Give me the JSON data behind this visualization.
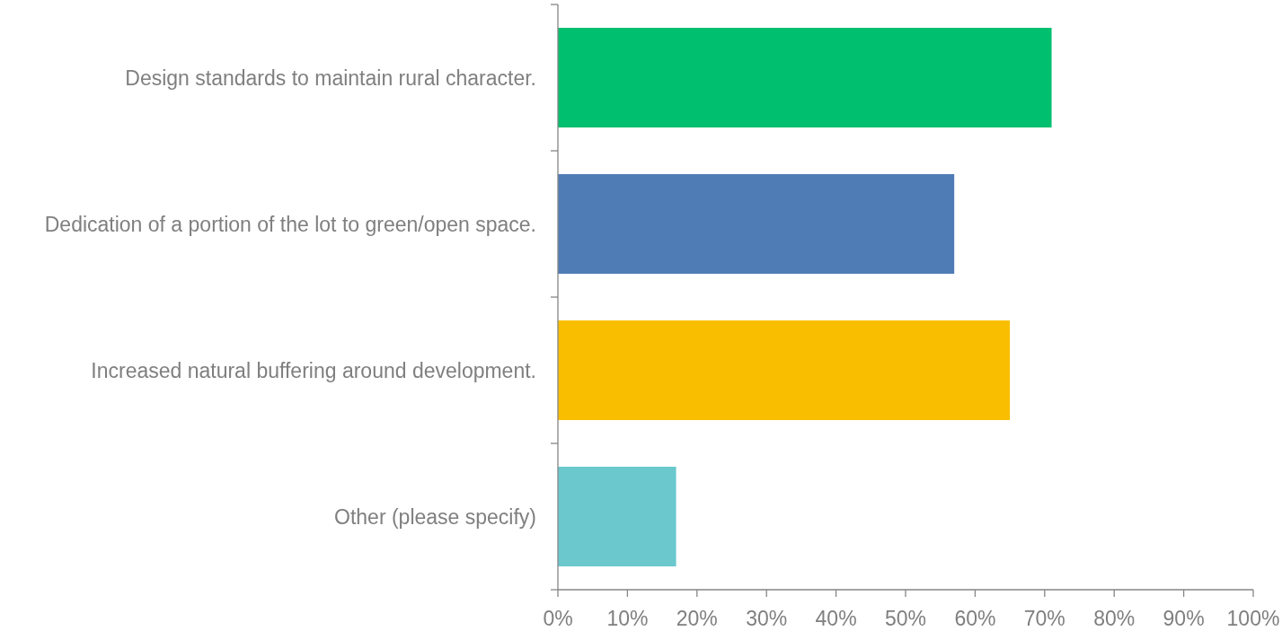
{
  "chart_data": {
    "type": "bar",
    "orientation": "horizontal",
    "categories": [
      "Design standards to maintain rural character.",
      "Dedication of a portion of the lot to green/open space.",
      "Increased natural buffering around development.",
      "Other (please specify)"
    ],
    "values": [
      71,
      57,
      65,
      17
    ],
    "colors": [
      "#00bf6f",
      "#507cb6",
      "#f9be00",
      "#6bc8cd"
    ],
    "xlim": [
      0,
      100
    ],
    "xticks": [
      {
        "value": 0,
        "label": "0%"
      },
      {
        "value": 10,
        "label": "10%"
      },
      {
        "value": 20,
        "label": "20%"
      },
      {
        "value": 30,
        "label": "30%"
      },
      {
        "value": 40,
        "label": "40%"
      },
      {
        "value": 50,
        "label": "50%"
      },
      {
        "value": 60,
        "label": "60%"
      },
      {
        "value": 70,
        "label": "70%"
      },
      {
        "value": 80,
        "label": "80%"
      },
      {
        "value": 90,
        "label": "90%"
      },
      {
        "value": 100,
        "label": "100%"
      }
    ]
  }
}
